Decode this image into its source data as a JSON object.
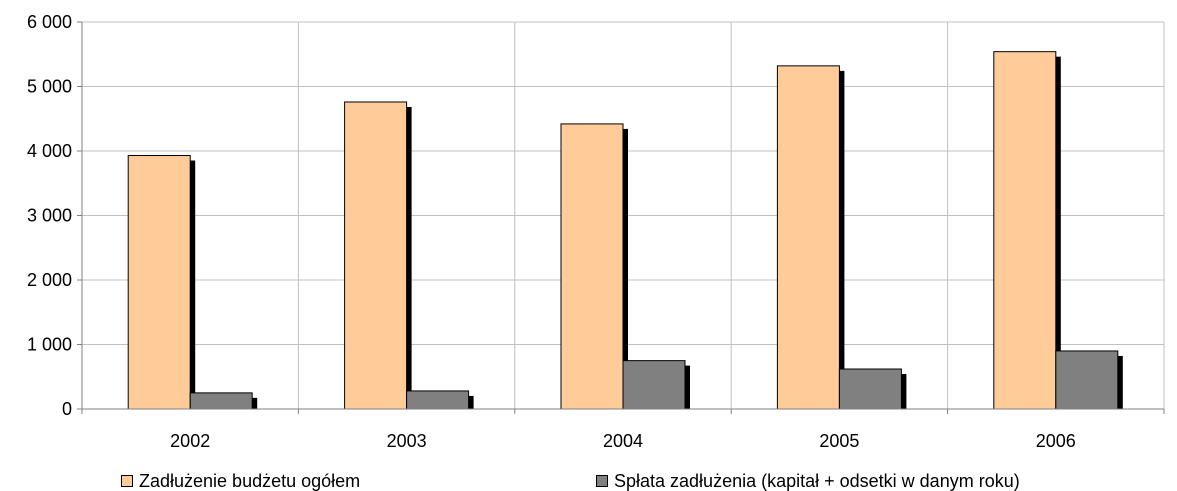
{
  "chart_data": {
    "type": "bar",
    "categories": [
      "2002",
      "2003",
      "2004",
      "2005",
      "2006"
    ],
    "series": [
      {
        "name": "Zadłużenie budżetu ogółem",
        "values": [
          3930,
          4760,
          4420,
          5320,
          5540
        ],
        "color": "#ffcc99"
      },
      {
        "name": "Spłata zadłużenia (kapitał + odsetki w  danym roku)",
        "values": [
          250,
          280,
          750,
          620,
          900
        ],
        "color": "#808080"
      }
    ],
    "y_ticks": [
      "0",
      "1 000",
      "2 000",
      "3 000",
      "4 000",
      "5 000",
      "6 000"
    ],
    "ylim": [
      0,
      6000
    ],
    "grid": true,
    "legend": "bottom",
    "title": "",
    "xlabel": "",
    "ylabel": ""
  }
}
